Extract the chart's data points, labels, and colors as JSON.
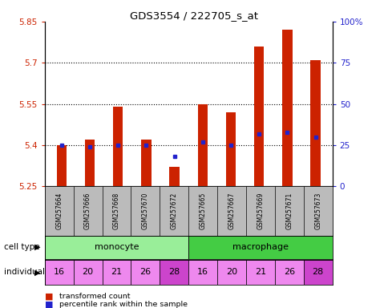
{
  "title": "GDS3554 / 222705_s_at",
  "samples": [
    "GSM257664",
    "GSM257666",
    "GSM257668",
    "GSM257670",
    "GSM257672",
    "GSM257665",
    "GSM257667",
    "GSM257669",
    "GSM257671",
    "GSM257673"
  ],
  "bar_values": [
    5.4,
    5.42,
    5.54,
    5.42,
    5.32,
    5.55,
    5.52,
    5.76,
    5.82,
    5.71
  ],
  "bar_base": 5.25,
  "dot_percentiles": [
    25,
    24,
    25,
    25,
    18,
    27,
    25,
    32,
    33,
    30
  ],
  "ylim": [
    5.25,
    5.85
  ],
  "yticks": [
    5.25,
    5.4,
    5.55,
    5.7,
    5.85
  ],
  "ytick_labels": [
    "5.25",
    "5.4",
    "5.55",
    "5.7",
    "5.85"
  ],
  "y2lim": [
    0,
    100
  ],
  "y2ticks": [
    0,
    25,
    50,
    75,
    100
  ],
  "y2tick_labels": [
    "0",
    "25",
    "50",
    "75",
    "100%"
  ],
  "individuals": [
    "16",
    "20",
    "21",
    "26",
    "28",
    "16",
    "20",
    "21",
    "26",
    "28"
  ],
  "ind_colors": [
    "#ee88ee",
    "#ee88ee",
    "#ee88ee",
    "#ee88ee",
    "#cc44cc",
    "#ee88ee",
    "#ee88ee",
    "#ee88ee",
    "#ee88ee",
    "#cc44cc"
  ],
  "monocyte_color": "#99ee99",
  "macrophage_color": "#44cc44",
  "bar_color": "#cc2200",
  "dot_color": "#2222cc",
  "bg_color": "#ffffff",
  "sample_bg_color": "#bbbbbb",
  "label_cell_type": "cell type",
  "label_individual": "individual",
  "legend_bar": "transformed count",
  "legend_dot": "percentile rank within the sample"
}
